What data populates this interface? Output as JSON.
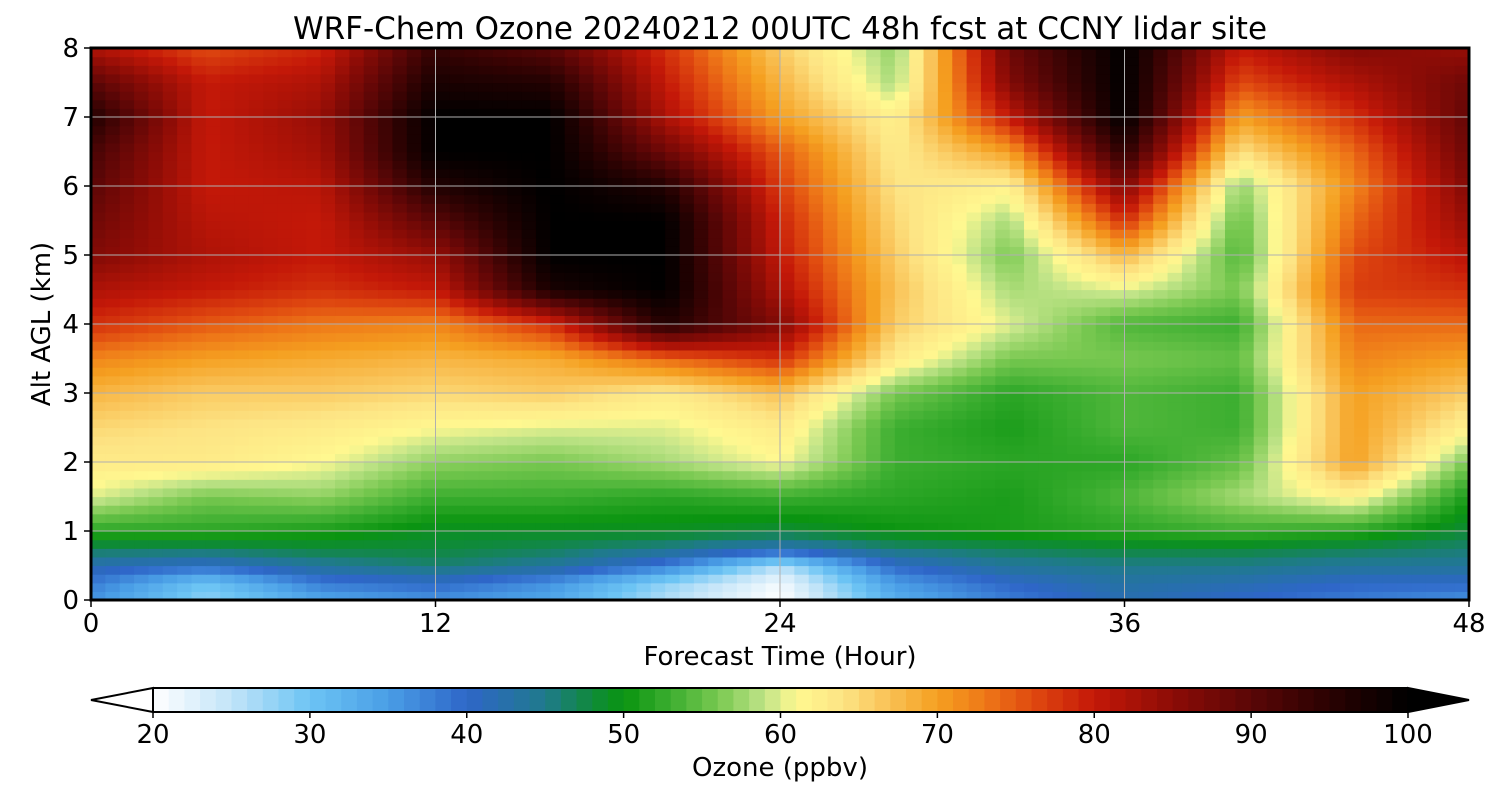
{
  "chart_data": {
    "type": "heatmap",
    "title": "WRF-Chem Ozone  20240212 00UTC 48h fcst at CCNY lidar site",
    "xlabel": "Forecast Time (Hour)",
    "ylabel": "Alt AGL (km)",
    "xlim": [
      0,
      48
    ],
    "ylim": [
      0,
      8
    ],
    "xticks": [
      0,
      12,
      24,
      36,
      48
    ],
    "yticks": [
      0,
      1,
      2,
      3,
      4,
      5,
      6,
      7,
      8
    ],
    "grid": true,
    "colorbar": {
      "label": "Ozone  (ppbv)",
      "range": [
        20,
        100
      ],
      "ticks": [
        20,
        30,
        40,
        50,
        60,
        70,
        80,
        90,
        100
      ],
      "extend": "both",
      "colors": [
        [
          20,
          "#ffffff"
        ],
        [
          25,
          "#c2e4f8"
        ],
        [
          30,
          "#6cc4f4"
        ],
        [
          35,
          "#4a9ee6"
        ],
        [
          40,
          "#2e66c8"
        ],
        [
          45,
          "#1f7a8c"
        ],
        [
          48,
          "#0f8a3a"
        ],
        [
          50,
          "#0a9410"
        ],
        [
          53,
          "#3cae30"
        ],
        [
          56,
          "#78c850"
        ],
        [
          59,
          "#c0e488"
        ],
        [
          61,
          "#fff890"
        ],
        [
          64,
          "#fde484"
        ],
        [
          67,
          "#f9c054"
        ],
        [
          70,
          "#f5a020"
        ],
        [
          73,
          "#ee7818"
        ],
        [
          76,
          "#e04a10"
        ],
        [
          80,
          "#c41808"
        ],
        [
          85,
          "#8c0c06"
        ],
        [
          90,
          "#5a0606"
        ],
        [
          95,
          "#2a0202"
        ],
        [
          100,
          "#000000"
        ]
      ]
    },
    "x": [
      0,
      4,
      8,
      12,
      16,
      20,
      24,
      28,
      32,
      36,
      40,
      44,
      48
    ],
    "y": [
      0,
      0.25,
      0.5,
      0.75,
      1,
      1.5,
      2,
      2.5,
      3,
      3.5,
      4,
      4.5,
      5,
      5.5,
      6,
      6.5,
      7,
      7.5,
      8
    ],
    "z": [
      [
        36,
        28,
        34,
        36,
        34,
        26,
        20,
        33,
        38,
        42,
        40,
        38,
        36
      ],
      [
        38,
        30,
        38,
        40,
        36,
        28,
        21,
        35,
        40,
        43,
        42,
        40,
        40
      ],
      [
        42,
        40,
        44,
        46,
        44,
        38,
        26,
        40,
        44,
        45,
        45,
        44,
        44
      ],
      [
        47,
        47,
        48,
        48,
        47,
        45,
        42,
        46,
        47,
        48,
        48,
        47,
        46
      ],
      [
        52,
        52,
        51,
        49,
        49,
        49,
        48,
        50,
        51,
        52,
        53,
        52,
        48
      ],
      [
        60,
        56,
        57,
        53,
        53,
        52,
        53,
        52,
        51,
        54,
        58,
        62,
        51
      ],
      [
        63,
        63,
        61,
        57,
        56,
        58,
        61,
        53,
        52,
        52,
        55,
        70,
        56
      ],
      [
        65,
        64,
        63,
        61,
        60,
        60,
        63,
        53,
        51,
        54,
        53,
        70,
        62
      ],
      [
        68,
        66,
        66,
        65,
        66,
        63,
        67,
        56,
        52,
        54,
        53,
        70,
        66
      ],
      [
        72,
        70,
        69,
        68,
        69,
        74,
        78,
        63,
        56,
        56,
        55,
        72,
        70
      ],
      [
        78,
        75,
        73,
        72,
        78,
        96,
        86,
        66,
        60,
        54,
        53,
        74,
        74
      ],
      [
        82,
        80,
        78,
        80,
        97,
        100,
        82,
        67,
        58,
        60,
        56,
        77,
        78
      ],
      [
        86,
        82,
        80,
        84,
        100,
        100,
        80,
        66,
        56,
        68,
        54,
        76,
        81
      ],
      [
        88,
        81,
        80,
        90,
        100,
        100,
        79,
        65,
        58,
        78,
        55,
        74,
        84
      ],
      [
        90,
        80,
        81,
        96,
        100,
        96,
        77,
        64,
        62,
        86,
        57,
        72,
        86
      ],
      [
        92,
        80,
        83,
        100,
        100,
        88,
        75,
        63,
        70,
        95,
        64,
        74,
        88
      ],
      [
        96,
        80,
        84,
        100,
        100,
        82,
        70,
        62,
        80,
        100,
        70,
        78,
        89
      ],
      [
        90,
        80,
        82,
        97,
        96,
        80,
        68,
        58,
        86,
        100,
        76,
        82,
        88
      ],
      [
        82,
        76,
        79,
        94,
        90,
        78,
        66,
        57,
        88,
        100,
        80,
        86,
        84
      ]
    ]
  }
}
